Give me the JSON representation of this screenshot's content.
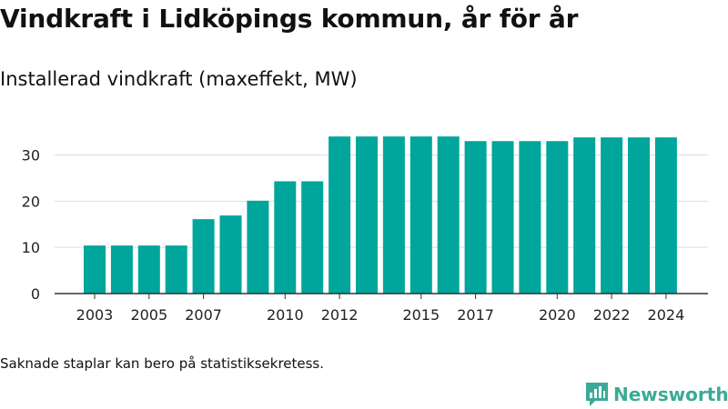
{
  "title": "Vindkraft i Lidköpings kommun, år för år",
  "subtitle": "Installerad vindkraft (maxeffekt, MW)",
  "footnote": "Saknade staplar kan bero på statistiksekretess.",
  "brand": {
    "name": "Newsworthy",
    "icon": "newsworthy-logo-icon",
    "color": "#3aaa96"
  },
  "chart_data": {
    "type": "bar",
    "title": "",
    "xlabel": "",
    "ylabel": "",
    "categories": [
      "2003",
      "2004",
      "2005",
      "2006",
      "2007",
      "2008",
      "2009",
      "2010",
      "2011",
      "2012",
      "2013",
      "2014",
      "2015",
      "2016",
      "2017",
      "2018",
      "2019",
      "2020",
      "2021",
      "2022",
      "2023",
      "2024"
    ],
    "values": [
      10.4,
      10.4,
      10.4,
      10.4,
      16.1,
      16.9,
      20.1,
      24.3,
      24.3,
      34.0,
      34.0,
      34.0,
      34.0,
      34.0,
      33.0,
      33.0,
      33.0,
      33.0,
      33.8,
      33.8,
      33.8,
      33.8
    ],
    "x_tick_labels": [
      "2003",
      "2005",
      "2007",
      "2010",
      "2012",
      "2015",
      "2017",
      "2020",
      "2022",
      "2024"
    ],
    "y_ticks": [
      0,
      10,
      20,
      30
    ],
    "ylim": [
      0,
      36
    ],
    "grid": true,
    "bar_color": "#00a59b",
    "grid_color": "#dddddd"
  }
}
